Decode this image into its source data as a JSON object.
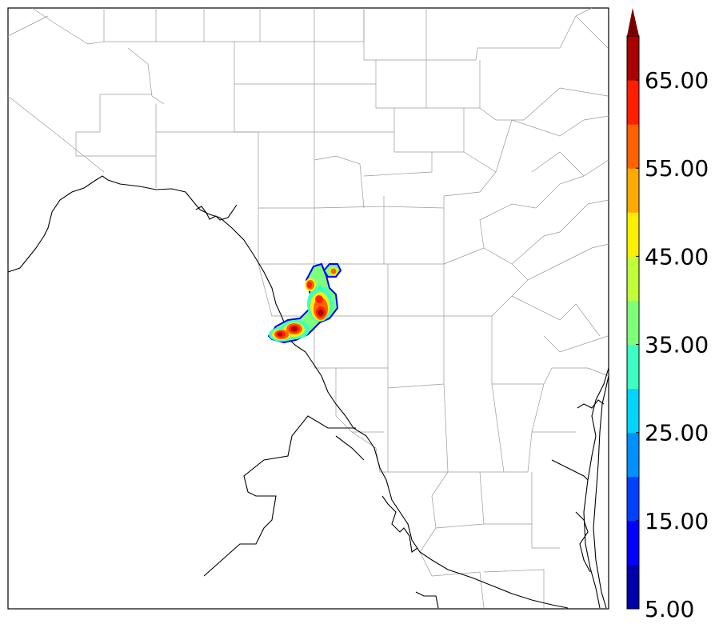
{
  "map": {
    "colorbar": {
      "levels": [
        5,
        10,
        15,
        20,
        25,
        30,
        35,
        40,
        45,
        50,
        55,
        60,
        65,
        70
      ],
      "colors": [
        "#0000aa",
        "#0000ff",
        "#0040ff",
        "#0090ff",
        "#00d5ff",
        "#3dffc2",
        "#7dff7a",
        "#c0ff3a",
        "#ffee00",
        "#ffaa00",
        "#ff6200",
        "#ff1e00",
        "#aa0000"
      ],
      "extend_color": "#7a0000",
      "extend": "max",
      "tick_labels": [
        "5.00",
        "15.00",
        "25.00",
        "35.00",
        "45.00",
        "55.00",
        "65.00"
      ]
    },
    "boundary_colors": {
      "county": "#9a9a9a",
      "state": "#000000",
      "coast": "#000000"
    }
  }
}
